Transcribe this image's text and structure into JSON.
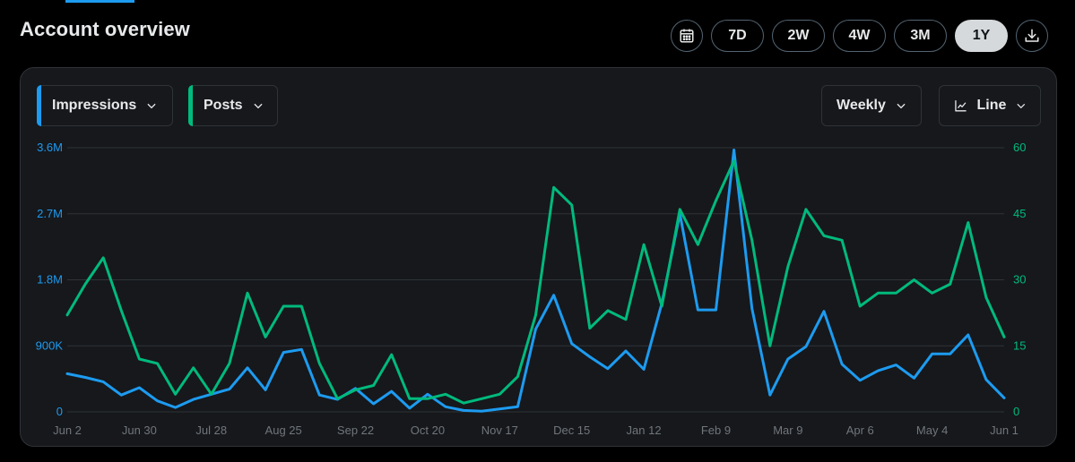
{
  "header": {
    "title": "Account overview",
    "ranges": [
      {
        "label": "7D",
        "active": false
      },
      {
        "label": "2W",
        "active": false
      },
      {
        "label": "4W",
        "active": false
      },
      {
        "label": "3M",
        "active": false
      },
      {
        "label": "1Y",
        "active": true
      }
    ],
    "calendar_icon": "calendar-icon",
    "download_icon": "download-icon"
  },
  "controls": {
    "metric1": {
      "label": "Impressions",
      "color": "#1d9bf0"
    },
    "metric2": {
      "label": "Posts",
      "color": "#00ba7c"
    },
    "interval": "Weekly",
    "chart_type": "Line",
    "chart_type_icon": "line-chart-icon"
  },
  "chart_data": {
    "type": "line",
    "x_tick_labels": [
      "Jun 2",
      "Jun 30",
      "Jul 28",
      "Aug 25",
      "Sep 22",
      "Oct 20",
      "Nov 17",
      "Dec 15",
      "Jan 12",
      "Feb 9",
      "Mar 9",
      "Apr 6",
      "May 4",
      "Jun 1"
    ],
    "left_axis": {
      "ticks": [
        "0",
        "900K",
        "1.8M",
        "2.7M",
        "3.6M"
      ],
      "range": [
        0,
        3600000
      ],
      "color": "#1d9bf0"
    },
    "right_axis": {
      "ticks": [
        "0",
        "15",
        "30",
        "45",
        "60"
      ],
      "range": [
        0,
        60
      ],
      "color": "#00ba7c"
    },
    "grid": true,
    "series": [
      {
        "name": "Impressions",
        "axis": "left",
        "color": "#1d9bf0",
        "values": [
          520000,
          470000,
          410000,
          230000,
          330000,
          150000,
          60000,
          170000,
          240000,
          310000,
          600000,
          300000,
          810000,
          850000,
          230000,
          170000,
          320000,
          110000,
          280000,
          50000,
          240000,
          70000,
          20000,
          10000,
          40000,
          70000,
          1130000,
          1590000,
          930000,
          750000,
          590000,
          830000,
          580000,
          1480000,
          2700000,
          1390000,
          1390000,
          3570000,
          1410000,
          230000,
          720000,
          890000,
          1370000,
          650000,
          430000,
          560000,
          640000,
          460000,
          790000,
          790000,
          1050000,
          440000,
          190000
        ]
      },
      {
        "name": "Posts",
        "axis": "right",
        "color": "#00ba7c",
        "values": [
          22,
          29,
          35,
          23,
          12,
          11,
          4,
          10,
          4,
          11,
          27,
          17,
          24,
          24,
          11,
          3,
          5,
          6,
          13,
          3,
          3,
          4,
          2,
          3,
          4,
          8,
          22,
          51,
          47,
          19,
          23,
          21,
          38,
          24,
          46,
          38,
          48,
          57,
          39,
          15,
          33,
          46,
          40,
          39,
          24,
          27,
          27,
          30,
          27,
          29,
          43,
          26,
          17
        ]
      }
    ]
  }
}
